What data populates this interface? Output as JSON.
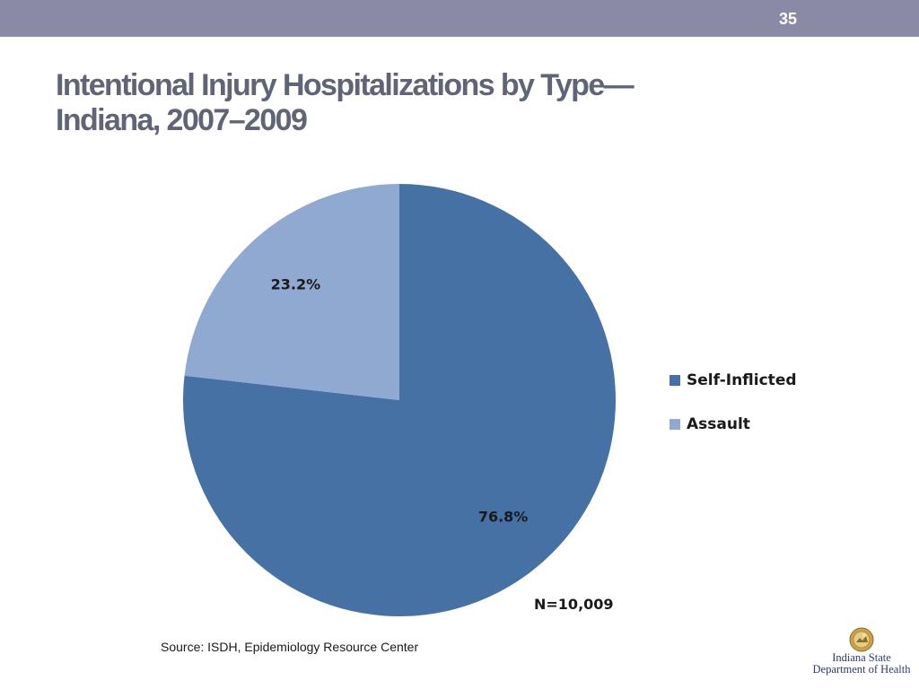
{
  "header": {
    "slide_number": "35"
  },
  "title": {
    "line1": "Intentional Injury Hospitalizations by Type—",
    "line2": "Indiana, 2007–2009"
  },
  "chart_data": {
    "type": "pie",
    "title": "Intentional Injury Hospitalizations by Type—Indiana, 2007–2009",
    "categories": [
      "Self-Inflicted",
      "Assault"
    ],
    "values": [
      76.8,
      23.2
    ],
    "data_labels": [
      "76.8%",
      "23.2%"
    ],
    "colors": [
      "#4671a5",
      "#90a9d0"
    ],
    "start_angle_deg": 0,
    "direction": "clockwise",
    "legend_position": "right",
    "note": "N=10,009"
  },
  "source": "Source: ISDH, Epidemiology Resource Center",
  "logo": {
    "line1": "Indiana State",
    "line2": "Department of Health"
  },
  "colors": {
    "top_bar": "#8a8aa6",
    "title": "#5f6477"
  }
}
